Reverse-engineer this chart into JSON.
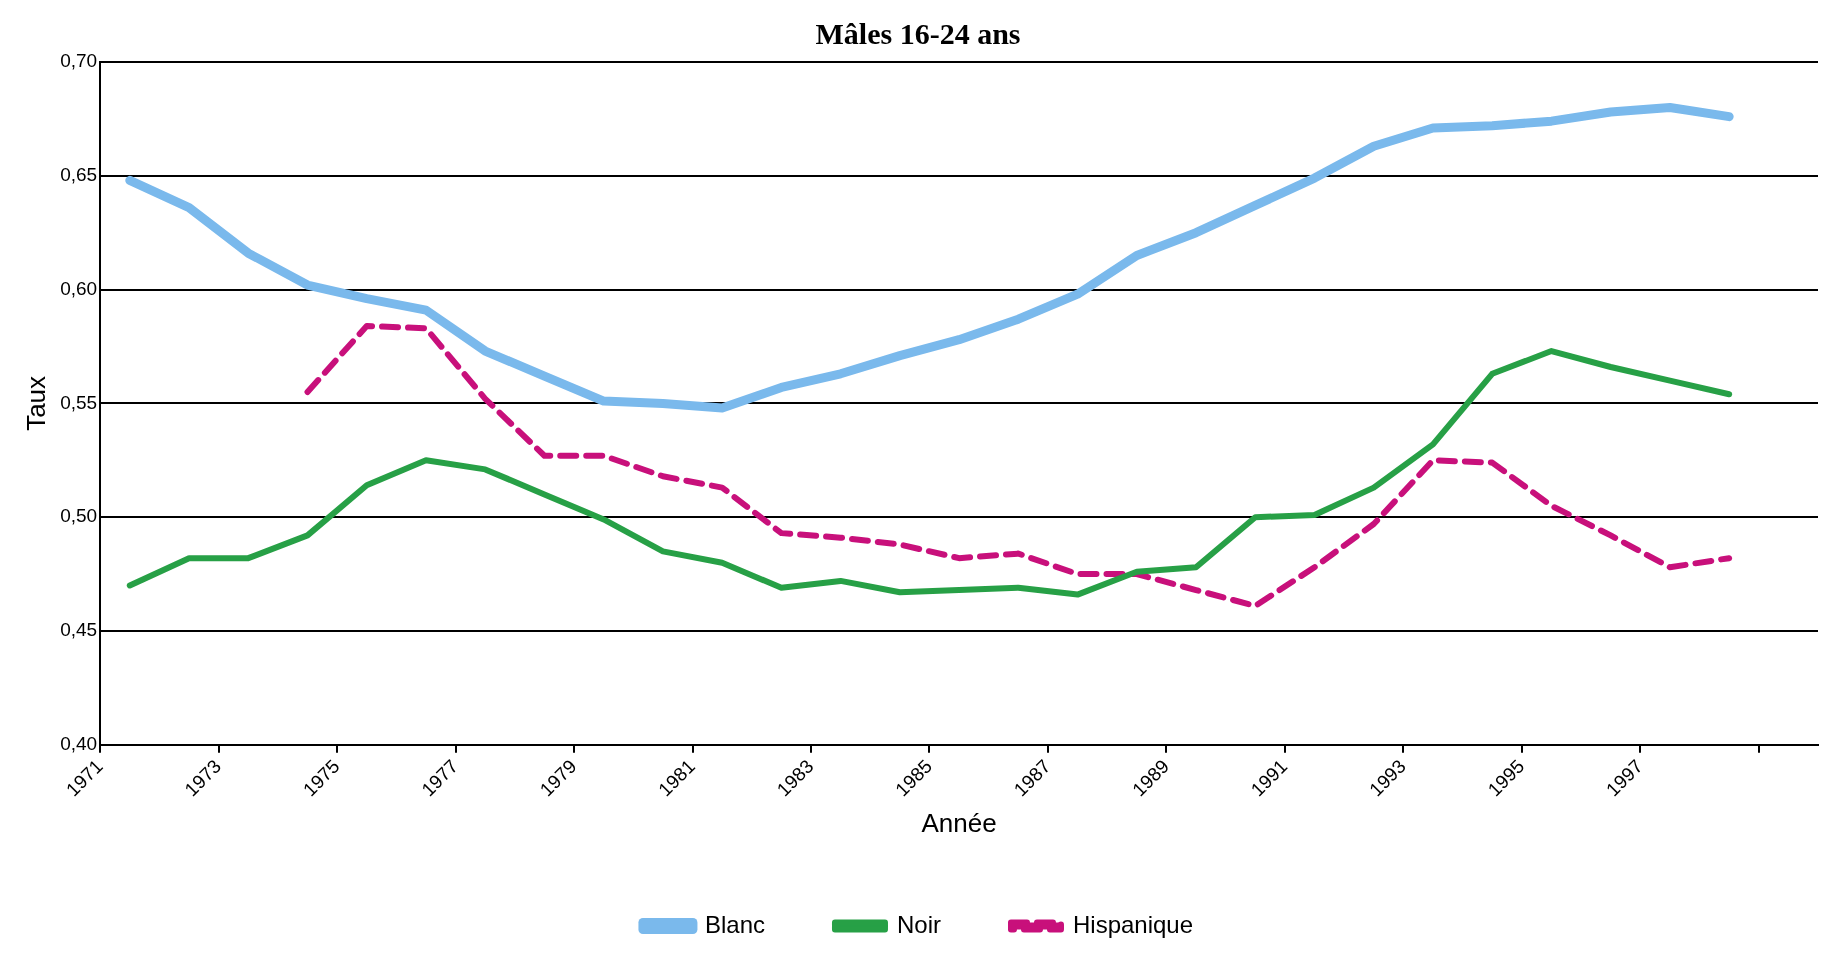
{
  "chart_data": {
    "type": "line",
    "title": "Mâles 16-24 ans",
    "xlabel": "Année",
    "ylabel": "Taux",
    "x": [
      1971.5,
      1972.5,
      1973.5,
      1974.5,
      1975.5,
      1976.5,
      1977.5,
      1978.5,
      1979.5,
      1980.5,
      1981.5,
      1982.5,
      1983.5,
      1984.5,
      1985.5,
      1986.5,
      1987.5,
      1988.5,
      1989.5,
      1990.5,
      1991.5,
      1992.5,
      1993.5,
      1994.5,
      1995.5,
      1996.5,
      1997.5,
      1998.5
    ],
    "series": [
      {
        "name": "Blanc",
        "color": "#7ab9ec",
        "line_style": "solid",
        "values": [
          0.648,
          0.636,
          0.616,
          0.602,
          0.596,
          0.591,
          0.573,
          0.562,
          0.551,
          0.55,
          0.548,
          0.557,
          0.563,
          0.571,
          0.578,
          0.587,
          0.598,
          0.615,
          0.625,
          0.637,
          0.649,
          0.663,
          0.671,
          0.672,
          0.674,
          0.678,
          0.68,
          0.676
        ]
      },
      {
        "name": "Noir",
        "color": "#27a046",
        "line_style": "solid",
        "values": [
          0.47,
          0.482,
          0.482,
          0.492,
          0.514,
          0.525,
          0.521,
          0.51,
          0.499,
          0.485,
          0.48,
          0.469,
          0.472,
          0.467,
          0.468,
          0.469,
          0.466,
          0.476,
          0.478,
          0.5,
          0.501,
          0.513,
          0.532,
          0.563,
          0.573,
          0.566,
          0.56,
          0.554
        ]
      },
      {
        "name": "Hispanique",
        "color": "#c8107b",
        "line_style": "dashed",
        "values": [
          null,
          null,
          null,
          0.555,
          0.584,
          0.583,
          0.552,
          0.527,
          0.527,
          0.518,
          0.513,
          0.493,
          0.491,
          0.488,
          0.482,
          0.484,
          0.475,
          0.475,
          0.468,
          0.461,
          0.478,
          0.497,
          0.525,
          0.524,
          0.505,
          0.492,
          0.478,
          0.482
        ]
      }
    ],
    "xlim": [
      1971,
      2000
    ],
    "xticks": [
      1971,
      1973,
      1975,
      1977,
      1979,
      1981,
      1983,
      1985,
      1987,
      1989,
      1991,
      1993,
      1995,
      1997,
      {
        "value": 1999,
        "label": null
      }
    ],
    "ylim": [
      0.4,
      0.7
    ],
    "yticks": [
      {
        "value": 0.4,
        "label": "0,40"
      },
      {
        "value": 0.45,
        "label": "0,45"
      },
      {
        "value": 0.5,
        "label": "0,50"
      },
      {
        "value": 0.55,
        "label": "0,55"
      },
      {
        "value": 0.6,
        "label": "0,60"
      },
      {
        "value": 0.65,
        "label": "0,65"
      },
      {
        "value": 0.7,
        "label": "0,70"
      }
    ],
    "grid": "y",
    "legend": "bottom",
    "marker": "none"
  }
}
